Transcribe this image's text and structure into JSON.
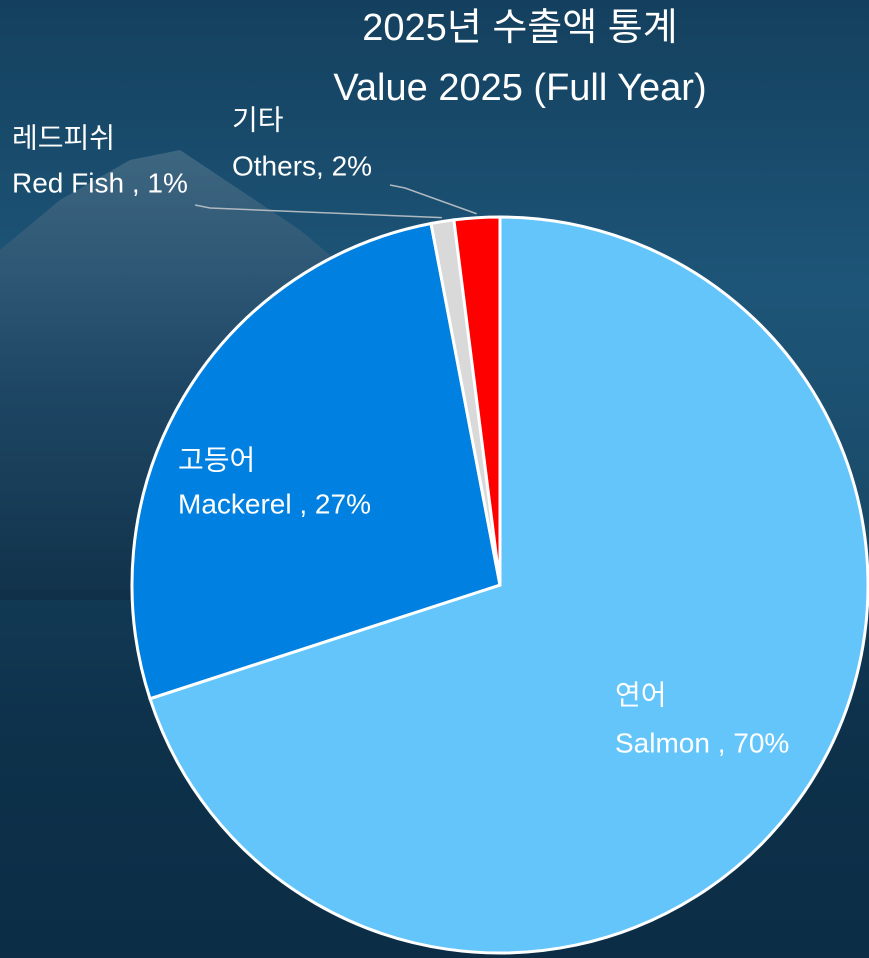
{
  "chart_data": {
    "type": "pie",
    "title": "2025년 수출액 통계",
    "subtitle": "Value 2025 (Full Year)",
    "categories": [
      "연어",
      "고등어",
      "레드피쉬",
      "기타"
    ],
    "values": [
      70,
      27,
      1,
      2
    ],
    "value_labels": [
      "Salmon , 70%",
      "Mackerel , 27%",
      "Red Fish , 1%",
      "Others, 2%"
    ],
    "colors": [
      "#64c5fb",
      "#0080e0",
      "#d9d9d9",
      "#ff0000"
    ]
  }
}
